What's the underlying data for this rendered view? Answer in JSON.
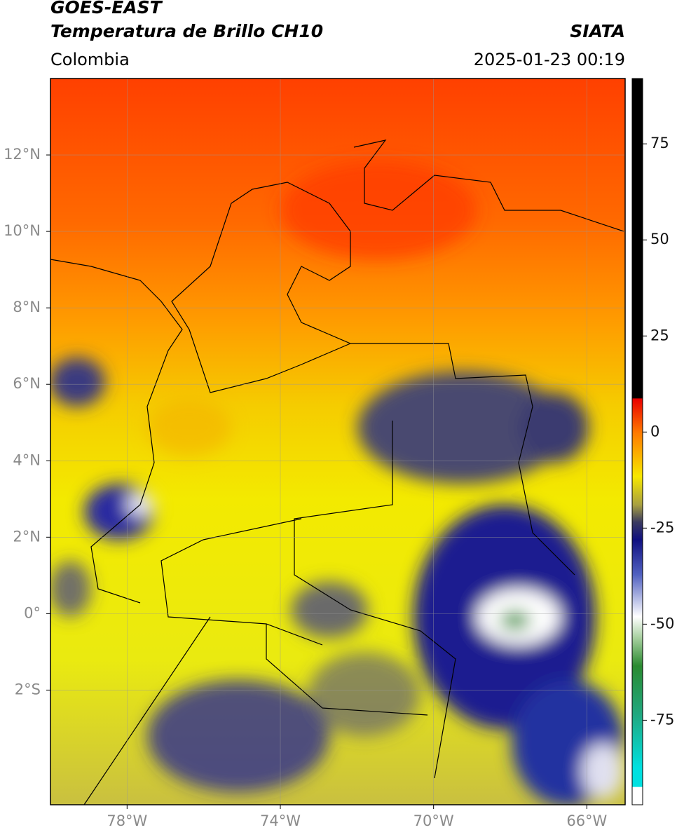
{
  "header": {
    "title": "GOES-EAST",
    "subtitle": "Temperatura de Brillo CH10",
    "source": "SIATA",
    "region": "Colombia",
    "datetime": "2025-01-23 00:19"
  },
  "map": {
    "xlim": [
      -80,
      -65
    ],
    "ylim": [
      -5,
      14
    ],
    "xticks": [
      {
        "value": -78,
        "label": "78°W"
      },
      {
        "value": -74,
        "label": "74°W"
      },
      {
        "value": -70,
        "label": "70°W"
      },
      {
        "value": -66,
        "label": "66°W"
      }
    ],
    "yticks": [
      {
        "value": 12,
        "label": "12°N"
      },
      {
        "value": 10,
        "label": "10°N"
      },
      {
        "value": 8,
        "label": "8°N"
      },
      {
        "value": 6,
        "label": "6°N"
      },
      {
        "value": 4,
        "label": "4°N"
      },
      {
        "value": 2,
        "label": "2°N"
      },
      {
        "value": 0,
        "label": "0°"
      },
      {
        "value": -2,
        "label": "2°S"
      }
    ],
    "grid": true
  },
  "colorbar": {
    "lim": [
      -97,
      92
    ],
    "ticks": [
      75,
      50,
      25,
      0,
      -25,
      -50,
      -75
    ]
  }
}
